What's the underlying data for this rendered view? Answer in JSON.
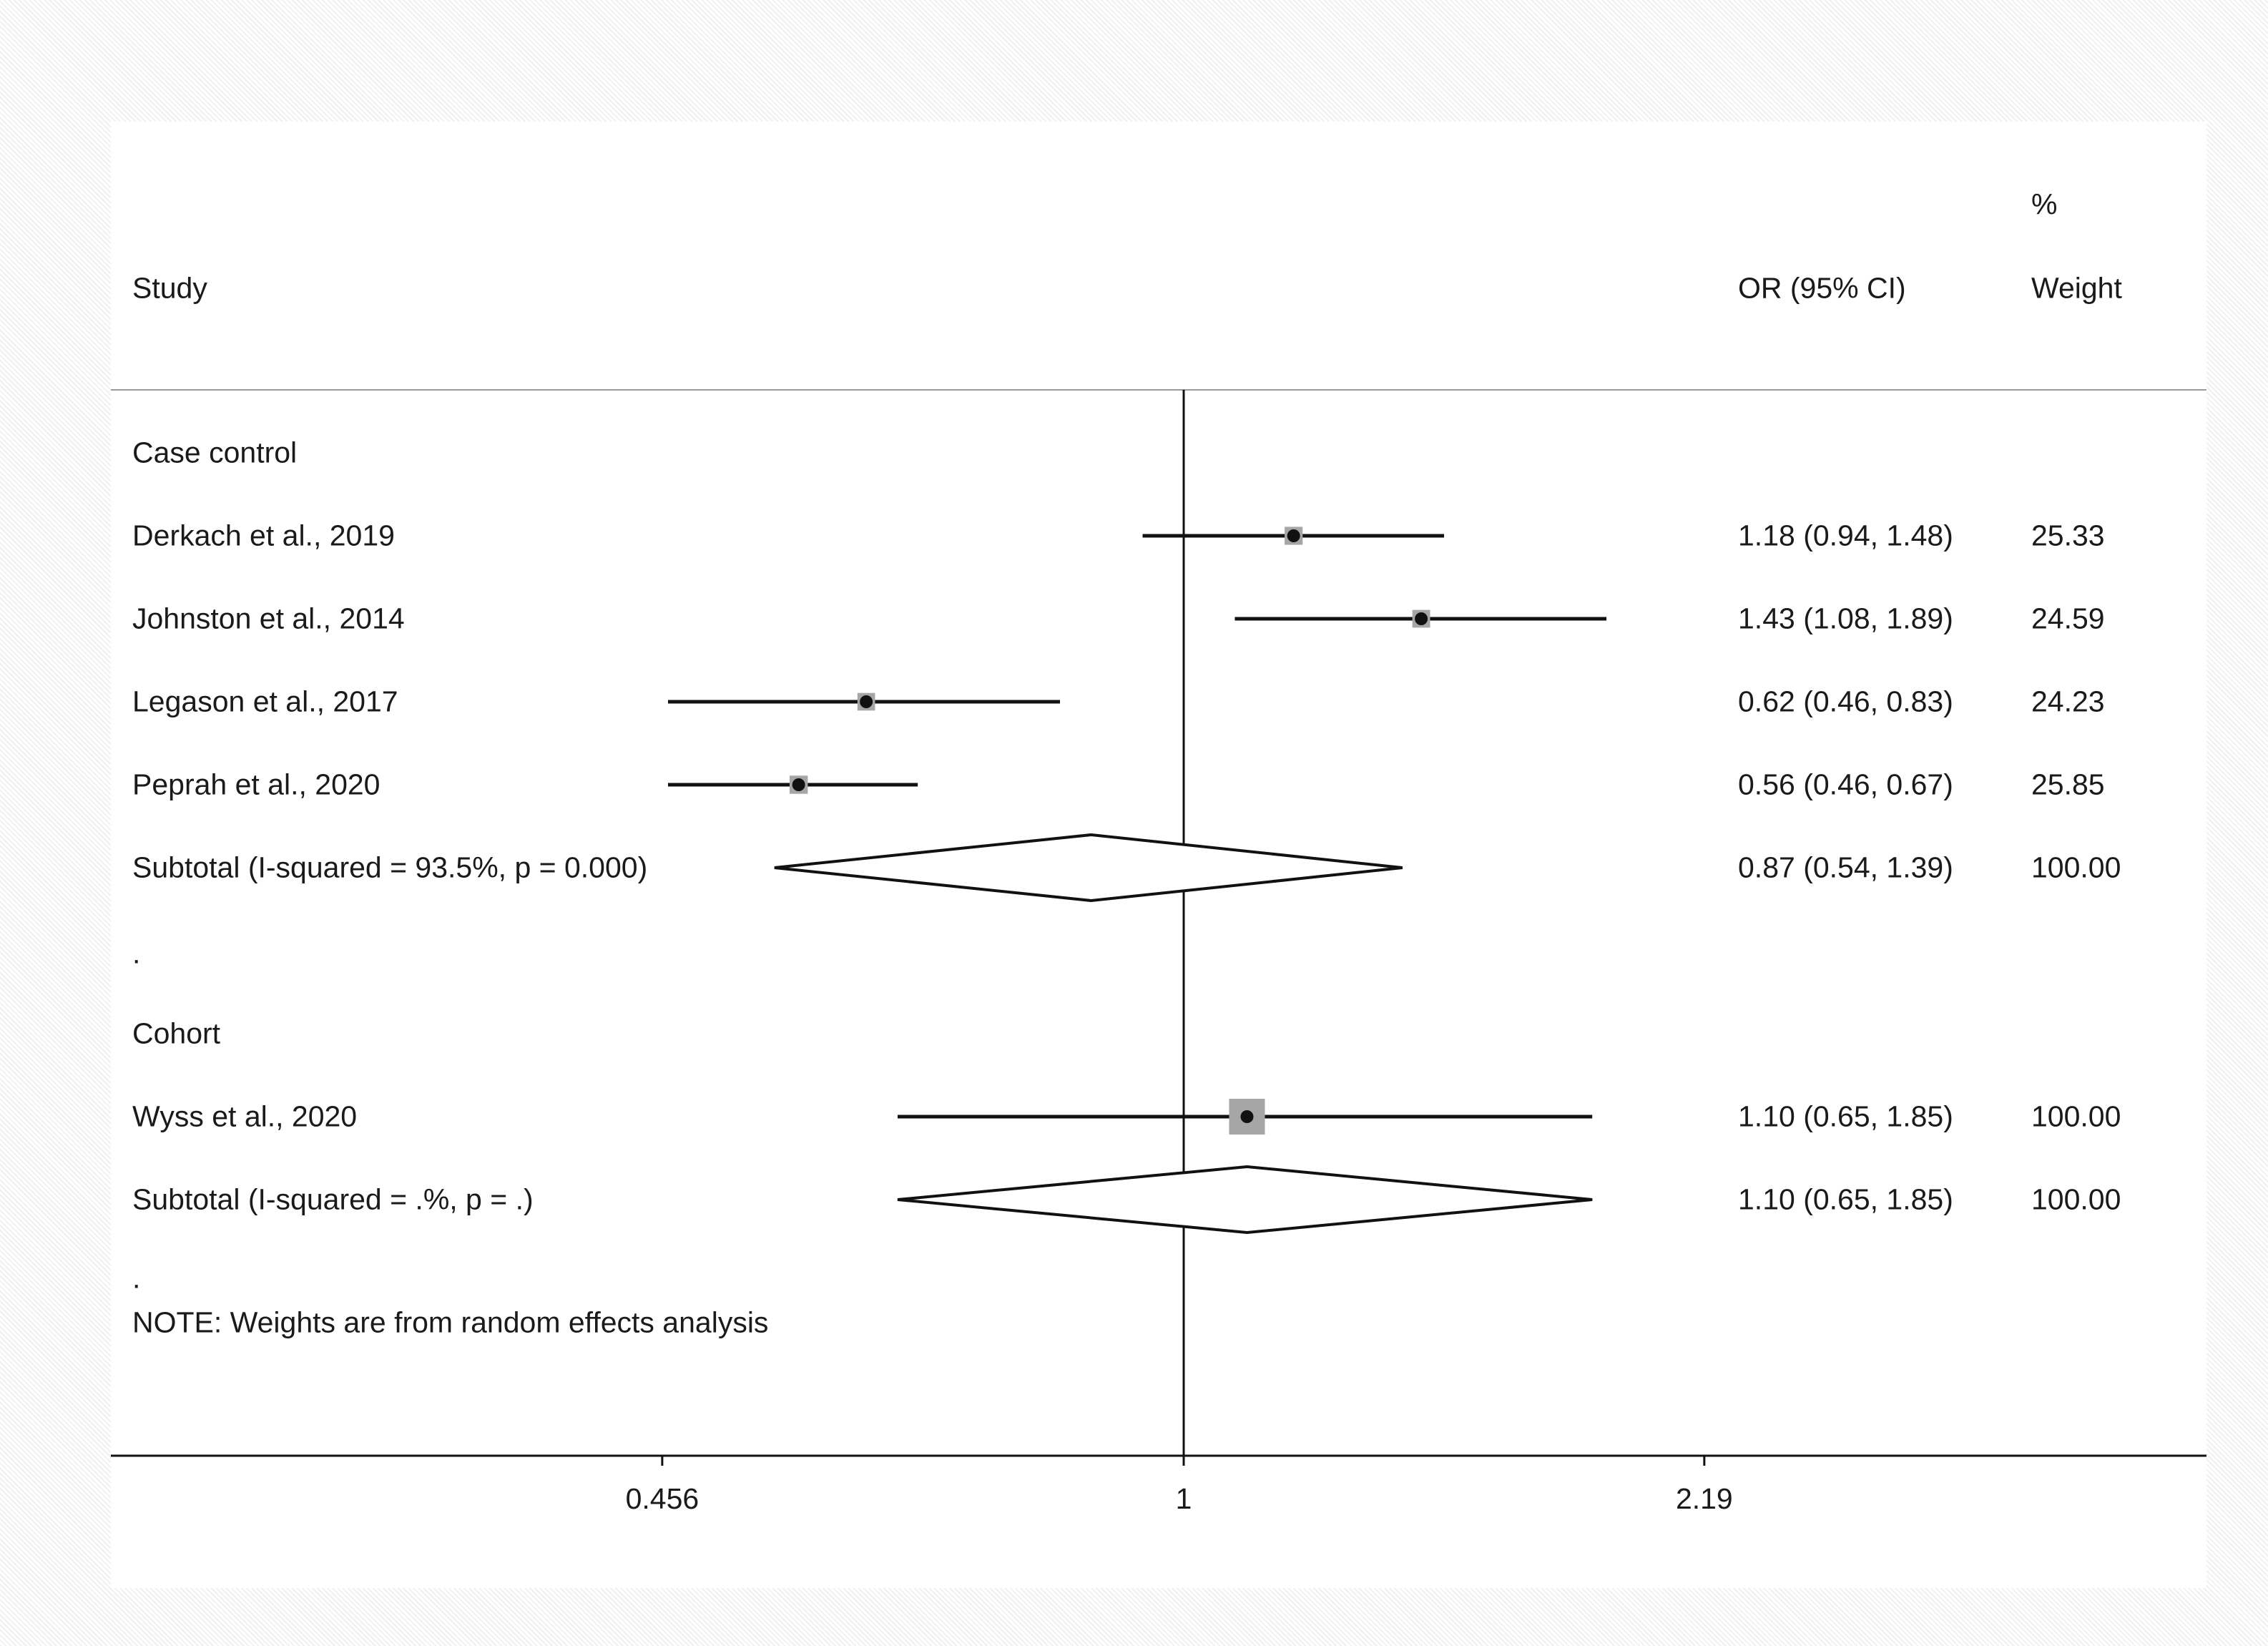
{
  "chart_data": {
    "type": "forest",
    "measure": "OR (95% CI)",
    "weight_header_top": "%",
    "weight_header_bottom": "Weight",
    "study_header": "Study",
    "x_scale": "log",
    "x_ticks": [
      {
        "value": 0.456,
        "label": "0.456"
      },
      {
        "value": 1,
        "label": "1"
      },
      {
        "value": 2.19,
        "label": "2.19"
      }
    ],
    "null_value": 1,
    "groups": [
      {
        "name": "Case control",
        "studies": [
          {
            "label": "Derkach et al., 2019",
            "or": 1.18,
            "lo": 0.94,
            "hi": 1.48,
            "ci_text": "1.18 (0.94, 1.48)",
            "weight": "25.33",
            "weight_value": 25.33
          },
          {
            "label": "Johnston et al., 2014",
            "or": 1.43,
            "lo": 1.08,
            "hi": 1.89,
            "ci_text": "1.43 (1.08, 1.89)",
            "weight": "24.59",
            "weight_value": 24.59
          },
          {
            "label": "Legason et al., 2017",
            "or": 0.62,
            "lo": 0.46,
            "hi": 0.83,
            "ci_text": "0.62 (0.46, 0.83)",
            "weight": "24.23",
            "weight_value": 24.23
          },
          {
            "label": "Peprah et al., 2020",
            "or": 0.56,
            "lo": 0.46,
            "hi": 0.67,
            "ci_text": "0.56 (0.46, 0.67)",
            "weight": "25.85",
            "weight_value": 25.85
          }
        ],
        "subtotal": {
          "label": "Subtotal  (I-squared = 93.5%, p = 0.000)",
          "or": 0.87,
          "lo": 0.54,
          "hi": 1.39,
          "ci_text": "0.87 (0.54, 1.39)",
          "weight": "100.00"
        },
        "separator": "."
      },
      {
        "name": "Cohort",
        "studies": [
          {
            "label": "Wyss et al., 2020",
            "or": 1.1,
            "lo": 0.65,
            "hi": 1.85,
            "ci_text": "1.10 (0.65, 1.85)",
            "weight": "100.00",
            "weight_value": 100.0
          }
        ],
        "subtotal": {
          "label": "Subtotal  (I-squared = .%, p = .)",
          "or": 1.1,
          "lo": 0.65,
          "hi": 1.85,
          "ci_text": "1.10 (0.65, 1.85)",
          "weight": "100.00"
        },
        "separator": "."
      }
    ],
    "note": "NOTE: Weights are from random effects analysis"
  },
  "colors": {
    "line": "#111111",
    "marker_box": "#a6a6a6",
    "divider": "#9a9a9a"
  }
}
